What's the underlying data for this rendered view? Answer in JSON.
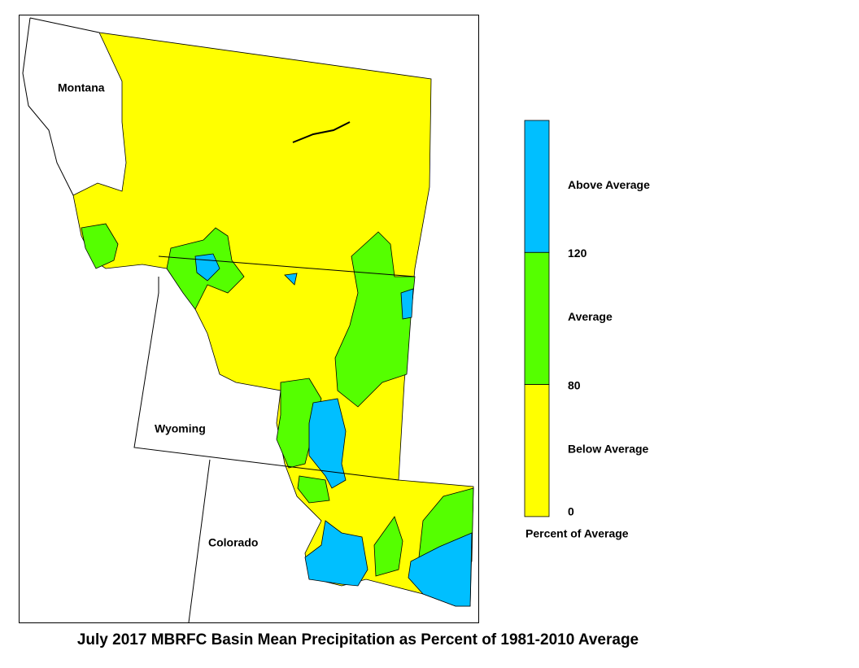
{
  "map": {
    "title": "July 2017 MBRFC Basin Mean Precipitation as Percent of 1981-2010 Average",
    "states": [
      "Montana",
      "Wyoming",
      "Colorado"
    ],
    "legend": {
      "title": "Percent of Average",
      "classes": [
        {
          "label": "Above Average",
          "color": "#00bfff"
        },
        {
          "label": "Average",
          "color": "#55ff00"
        },
        {
          "label": "Below Average",
          "color": "#ffff00"
        }
      ],
      "ticks": [
        120,
        80,
        0
      ]
    }
  }
}
